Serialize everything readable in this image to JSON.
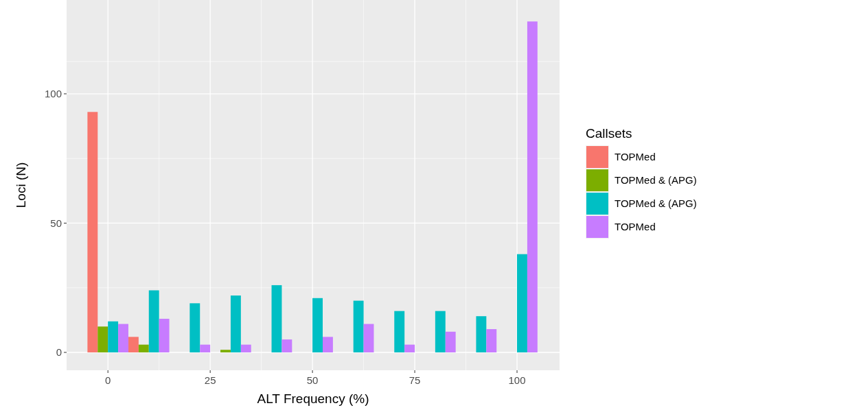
{
  "chart_data": {
    "type": "bar",
    "xlabel": "ALT Frequency (%)",
    "ylabel": "Loci (N)",
    "legend_title": "Callsets",
    "legend": "right",
    "grid": true,
    "x": [
      0,
      10,
      20,
      30,
      40,
      50,
      60,
      70,
      80,
      90,
      100
    ],
    "xlim": [
      -10.1,
      110.4
    ],
    "xticks": [
      0,
      25,
      50,
      75,
      100
    ],
    "ylim": [
      -6.9,
      136.3
    ],
    "yticks": [
      0,
      50,
      100
    ],
    "series": [
      {
        "name": "TOPMed",
        "color": "#f8766d",
        "values": [
          93,
          6,
          0,
          0,
          0,
          0,
          0,
          0,
          0,
          0,
          0
        ]
      },
      {
        "name": "TOPMed & (APG)",
        "color": "#7cae00",
        "values": [
          10,
          3,
          0,
          1,
          0,
          0,
          0,
          0,
          0,
          0,
          0
        ]
      },
      {
        "name": "TOPMed & (APG)",
        "color": "#00bfc4",
        "values": [
          12,
          24,
          19,
          22,
          26,
          21,
          20,
          16,
          16,
          14,
          38
        ]
      },
      {
        "name": "TOPMed",
        "color": "#c77cff",
        "values": [
          11,
          13,
          3,
          3,
          5,
          6,
          11,
          3,
          8,
          9,
          128
        ]
      }
    ]
  }
}
